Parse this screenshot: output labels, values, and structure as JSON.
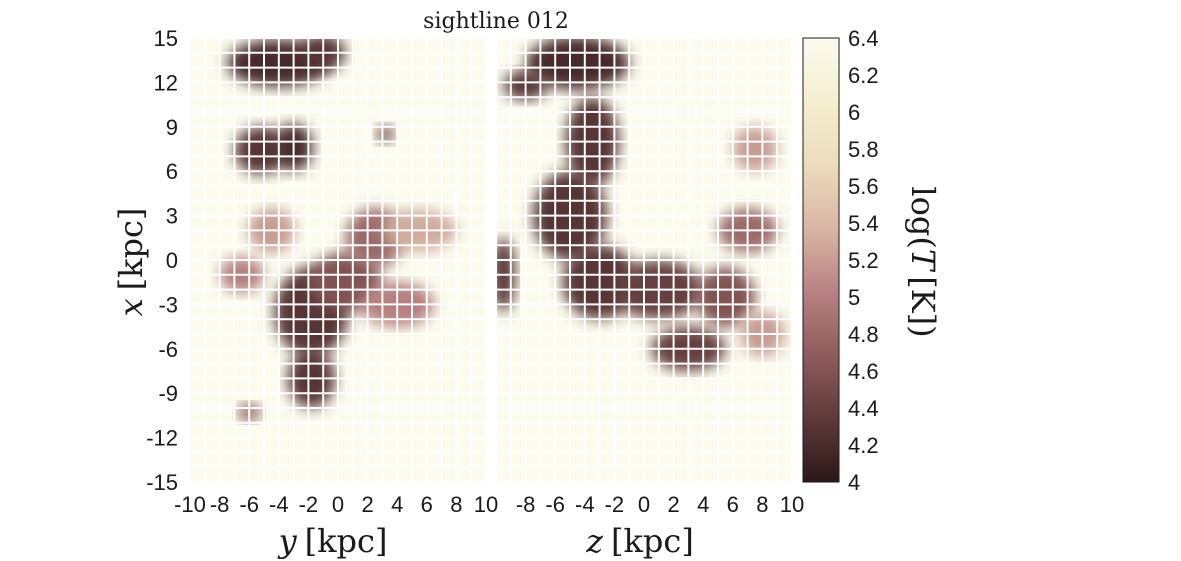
{
  "figure": {
    "title": "sightline 012"
  },
  "chart_data": {
    "type": "heatmap",
    "title": "sightline 012",
    "panels": [
      {
        "name": "left",
        "xlabel_var": "y",
        "xlabel_unit": "[kpc]",
        "ylabel_var": "x",
        "ylabel_unit": "[kpc]",
        "xlim": [
          -10,
          10
        ],
        "ylim": [
          -15,
          15
        ],
        "xticks": [
          "-10",
          "-8",
          "-6",
          "-4",
          "-2",
          "0",
          "2",
          "4",
          "6",
          "8",
          "10"
        ],
        "yticks": [
          "15",
          "12",
          "9",
          "6",
          "3",
          "0",
          "-3",
          "-6",
          "-9",
          "-12",
          "-15"
        ],
        "grid": true
      },
      {
        "name": "right",
        "xlabel_var": "z",
        "xlabel_unit": "[kpc]",
        "xlim": [
          -10,
          10
        ],
        "ylim": [
          -15,
          15
        ],
        "xticks": [
          "-8",
          "-6",
          "-4",
          "-2",
          "0",
          "2",
          "4",
          "6",
          "8",
          "10"
        ],
        "grid": true
      }
    ],
    "colorbar": {
      "label_prefix": "log",
      "label_var": "T",
      "label_unit": "[K]",
      "range": [
        4,
        6.4
      ],
      "ticks": [
        "6.4",
        "6.2",
        "6",
        "5.8",
        "5.6",
        "5.4",
        "5.2",
        "5",
        "4.8",
        "4.6",
        "4.4",
        "4.2",
        "4"
      ],
      "colors": [
        "#2b1818",
        "#5e3a3a",
        "#8e5c5c",
        "#b88282",
        "#d9b6a4",
        "#ebdcbc",
        "#f4efd0",
        "#fbfbee"
      ]
    },
    "cold_regions": [
      {
        "panel": "left",
        "x": -4.0,
        "y": 13.3,
        "rx": 3.5,
        "ry": 1.6,
        "value": 4.2
      },
      {
        "panel": "left",
        "x": -1.0,
        "y": 14.0,
        "rx": 1.5,
        "ry": 1.2,
        "value": 4.3
      },
      {
        "panel": "left",
        "x": -5.2,
        "y": 7.4,
        "rx": 1.8,
        "ry": 1.6,
        "value": 4.3
      },
      {
        "panel": "left",
        "x": -3.0,
        "y": 7.6,
        "rx": 1.3,
        "ry": 1.6,
        "value": 4.2
      },
      {
        "panel": "left",
        "x": -1.8,
        "y": -3.5,
        "rx": 2.5,
        "ry": 3.0,
        "value": 4.3
      },
      {
        "panel": "left",
        "x": -1.8,
        "y": -8.0,
        "rx": 1.6,
        "ry": 2.0,
        "value": 4.3
      },
      {
        "panel": "left",
        "x": 0.5,
        "y": -1.5,
        "rx": 2.5,
        "ry": 2.0,
        "value": 4.6
      },
      {
        "panel": "left",
        "x": 2.5,
        "y": 1.5,
        "rx": 2.0,
        "ry": 2.0,
        "value": 4.8
      },
      {
        "panel": "left",
        "x": -6.5,
        "y": -1.0,
        "rx": 1.5,
        "ry": 1.2,
        "value": 5.0
      },
      {
        "panel": "left",
        "x": 4.0,
        "y": -3.0,
        "rx": 2.5,
        "ry": 1.5,
        "value": 5.0
      },
      {
        "panel": "left",
        "x": -4.5,
        "y": 2.0,
        "rx": 1.6,
        "ry": 1.5,
        "value": 5.2
      },
      {
        "panel": "left",
        "x": 5.5,
        "y": 2.0,
        "rx": 2.5,
        "ry": 1.4,
        "value": 5.3
      },
      {
        "panel": "left",
        "x": 3.2,
        "y": 8.5,
        "rx": 0.6,
        "ry": 0.6,
        "value": 4.5
      },
      {
        "panel": "left",
        "x": -6.0,
        "y": -10.3,
        "rx": 0.8,
        "ry": 0.6,
        "value": 4.7
      },
      {
        "panel": "right",
        "x": -4.5,
        "y": 13.3,
        "rx": 3.5,
        "ry": 1.8,
        "value": 4.2
      },
      {
        "panel": "right",
        "x": -8.0,
        "y": 11.8,
        "rx": 1.5,
        "ry": 1.0,
        "value": 4.3
      },
      {
        "panel": "right",
        "x": -3.5,
        "y": 8.0,
        "rx": 1.8,
        "ry": 3.0,
        "value": 4.3
      },
      {
        "panel": "right",
        "x": -5.0,
        "y": 3.0,
        "rx": 2.5,
        "ry": 3.0,
        "value": 4.3
      },
      {
        "panel": "right",
        "x": -3.0,
        "y": -1.5,
        "rx": 2.5,
        "ry": 2.5,
        "value": 4.3
      },
      {
        "panel": "right",
        "x": 1.0,
        "y": -2.0,
        "rx": 3.0,
        "ry": 2.0,
        "value": 4.4
      },
      {
        "panel": "right",
        "x": 3.0,
        "y": -6.0,
        "rx": 2.5,
        "ry": 1.5,
        "value": 4.4
      },
      {
        "panel": "right",
        "x": 5.5,
        "y": -2.5,
        "rx": 2.0,
        "ry": 2.0,
        "value": 4.6
      },
      {
        "panel": "right",
        "x": 7.0,
        "y": 2.0,
        "rx": 2.0,
        "ry": 1.5,
        "value": 4.8
      },
      {
        "panel": "right",
        "x": -9.5,
        "y": -1.0,
        "rx": 0.8,
        "ry": 2.5,
        "value": 4.3
      },
      {
        "panel": "right",
        "x": 7.5,
        "y": 7.5,
        "rx": 1.5,
        "ry": 1.5,
        "value": 5.2
      },
      {
        "panel": "right",
        "x": 8.0,
        "y": -5.0,
        "rx": 1.5,
        "ry": 1.5,
        "value": 5.2
      }
    ]
  }
}
